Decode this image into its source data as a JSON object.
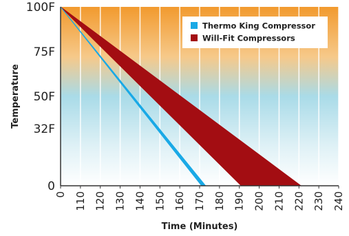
{
  "chart_data": {
    "type": "area",
    "xlabel": "Time (Minutes)",
    "ylabel": "Temperature",
    "x_ticks": [
      "0",
      "110",
      "120",
      "130",
      "140",
      "150",
      "160",
      "170",
      "180",
      "190",
      "200",
      "210",
      "220",
      "230",
      "240"
    ],
    "y_ticks": [
      {
        "label": "100F",
        "value": 100
      },
      {
        "label": "75F",
        "value": 75
      },
      {
        "label": "50F",
        "value": 50
      },
      {
        "label": "32F",
        "value": 32
      },
      {
        "label": "0",
        "value": 0
      }
    ],
    "series": [
      {
        "name": "Thermo King Compressor",
        "color": "#1aa9e6",
        "start": [
          0,
          100
        ],
        "end_min": 171,
        "end_max": 173
      },
      {
        "name": "Will-Fit Compressors",
        "color": "#a30d12",
        "start": [
          0,
          100
        ],
        "end_min": 191,
        "end_max": 221
      }
    ],
    "legend_position": "top-right",
    "grid": true,
    "background_gradient": [
      "#f29a2e",
      "#a9dbe8",
      "#ffffff"
    ]
  }
}
